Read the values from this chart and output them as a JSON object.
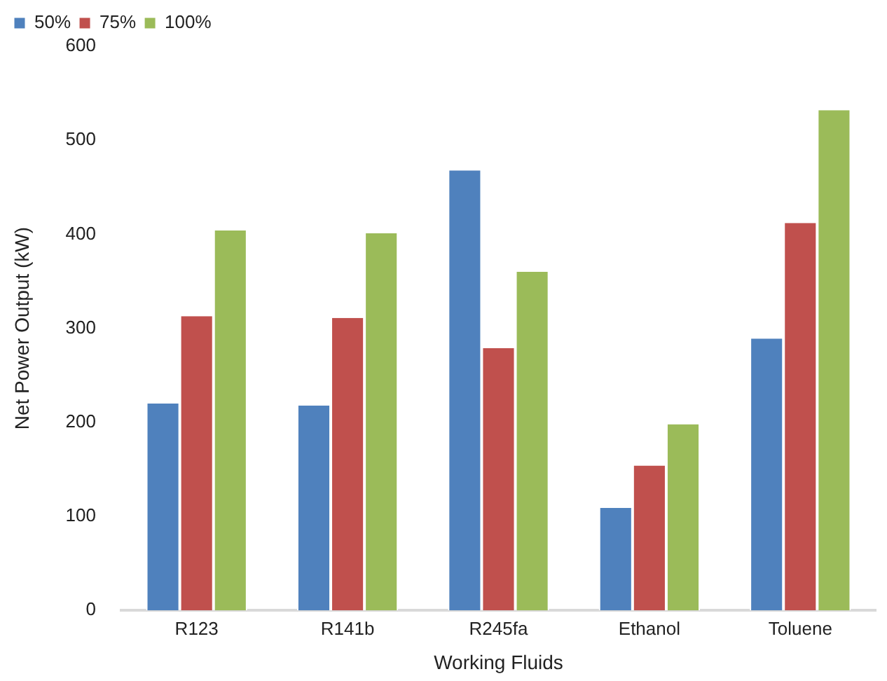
{
  "chart_data": {
    "type": "bar",
    "xlabel": "Working Fluids",
    "ylabel": "Net Power Output (kW)",
    "categories": [
      "R123",
      "R141b",
      "R245fa",
      "Ethanol",
      "Toluene"
    ],
    "series": [
      {
        "name": "50%",
        "color": "#4f81bd",
        "values": [
          220,
          218,
          468,
          109,
          289
        ]
      },
      {
        "name": "75%",
        "color": "#c0504d",
        "values": [
          313,
          311,
          279,
          154,
          412
        ]
      },
      {
        "name": "100%",
        "color": "#9bbb59",
        "values": [
          404,
          401,
          360,
          198,
          532
        ]
      }
    ],
    "ylim": [
      0,
      600
    ],
    "yticks": [
      0,
      100,
      200,
      300,
      400,
      500,
      600
    ],
    "grid": false,
    "legend": "top left"
  }
}
